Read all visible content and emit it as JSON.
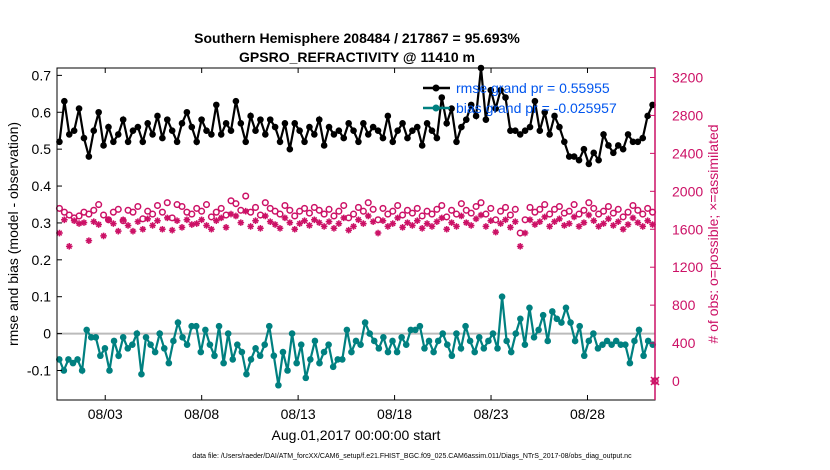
{
  "chart_data": {
    "type": "line",
    "title": "Southern Hemisphere 208484 / 217867 = 95.693%",
    "subtitle": "GPSRO_REFRACTIVITY @ 11410 m",
    "xlabel": "Aug.01,2017 00:00:00 start",
    "ylabel": "rmse and bias (model - observation)",
    "y2label": "# of obs: o=possible; ×=assimilated",
    "footnote": "data file: /Users/raeder/DAI/ATM_forcXX/CAM6_setup/f.e21.FHIST_BGC.f09_025.CAM6assim.011/Diags_NTrS_2017-08/obs_diag_output.nc",
    "xlim": [
      0.0,
      31.0
    ],
    "ylim": [
      -0.18,
      0.72
    ],
    "y2lim": [
      -200,
      3300
    ],
    "x_ticks": [
      2.5,
      7.5,
      12.5,
      17.5,
      22.5,
      27.5
    ],
    "x_tick_labels": [
      "08/03",
      "08/08",
      "08/13",
      "08/18",
      "08/23",
      "08/28"
    ],
    "y_ticks": [
      -0.1,
      0,
      0.1,
      0.2,
      0.3,
      0.4,
      0.5,
      0.6,
      0.7
    ],
    "y_tick_labels": [
      "-0.1",
      "0",
      "0.1",
      "0.2",
      "0.3",
      "0.4",
      "0.5",
      "0.6",
      "0.7"
    ],
    "y2_ticks": [
      0,
      400,
      800,
      1200,
      1600,
      2000,
      2400,
      2800,
      3200
    ],
    "y2_tick_labels": [
      "0",
      "400",
      "800",
      "1200",
      "1600",
      "2000",
      "2400",
      "2800",
      "3200"
    ],
    "legend_position": "top-right",
    "series": [
      {
        "name": "rmse grand pr = 0.55955",
        "axis": "left",
        "color": "#000000",
        "values": [
          0.52,
          0.63,
          0.54,
          0.55,
          0.61,
          0.53,
          0.48,
          0.55,
          0.6,
          0.51,
          0.56,
          0.52,
          0.54,
          0.58,
          0.52,
          0.55,
          0.56,
          0.52,
          0.57,
          0.54,
          0.59,
          0.53,
          0.58,
          0.55,
          0.52,
          0.57,
          0.6,
          0.56,
          0.52,
          0.58,
          0.55,
          0.54,
          0.62,
          0.54,
          0.57,
          0.55,
          0.63,
          0.57,
          0.52,
          0.59,
          0.55,
          0.58,
          0.54,
          0.58,
          0.56,
          0.52,
          0.57,
          0.5,
          0.57,
          0.55,
          0.52,
          0.56,
          0.54,
          0.58,
          0.51,
          0.56,
          0.54,
          0.55,
          0.53,
          0.57,
          0.55,
          0.52,
          0.57,
          0.54,
          0.56,
          0.55,
          0.53,
          0.59,
          0.52,
          0.55,
          0.57,
          0.53,
          0.55,
          0.56,
          0.51,
          0.57,
          0.55,
          0.53,
          0.64,
          0.57,
          0.61,
          0.52,
          0.56,
          0.58,
          0.62,
          0.59,
          0.72,
          0.58,
          0.66,
          0.61,
          0.66,
          0.64,
          0.55,
          0.55,
          0.54,
          0.55,
          0.56,
          0.63,
          0.55,
          0.6,
          0.54,
          0.59,
          0.56,
          0.52,
          0.48,
          0.48,
          0.47,
          0.5,
          0.46,
          0.49,
          0.47,
          0.54,
          0.51,
          0.49,
          0.51,
          0.5,
          0.54,
          0.52,
          0.52,
          0.53,
          0.59,
          0.62
        ]
      },
      {
        "name": "bias grand pr = -0.025957",
        "axis": "left",
        "color": "#008080",
        "values": [
          -0.07,
          -0.1,
          -0.07,
          -0.08,
          -0.07,
          -0.1,
          0.01,
          -0.01,
          -0.01,
          -0.06,
          -0.04,
          -0.1,
          -0.02,
          -0.06,
          -0.01,
          -0.04,
          -0.03,
          0.0,
          -0.11,
          -0.01,
          -0.03,
          -0.05,
          0.0,
          -0.04,
          -0.08,
          -0.02,
          0.03,
          -0.01,
          -0.03,
          0.02,
          0.02,
          -0.05,
          0.01,
          -0.03,
          -0.06,
          0.02,
          -0.08,
          0.0,
          -0.07,
          -0.03,
          -0.05,
          -0.11,
          -0.07,
          -0.04,
          -0.06,
          -0.03,
          0.02,
          -0.06,
          -0.14,
          -0.05,
          -0.1,
          0.0,
          -0.08,
          -0.03,
          -0.12,
          -0.07,
          -0.02,
          -0.08,
          -0.05,
          -0.03,
          -0.09,
          -0.07,
          -0.07,
          0.01,
          -0.05,
          -0.02,
          -0.03,
          0.03,
          0.0,
          -0.02,
          -0.04,
          -0.01,
          -0.05,
          -0.02,
          -0.05,
          -0.01,
          -0.03,
          0.01,
          0.01,
          0.02,
          -0.04,
          -0.02,
          -0.05,
          -0.02,
          0.0,
          -0.03,
          -0.06,
          0.0,
          -0.04,
          0.02,
          -0.02,
          -0.05,
          -0.01,
          -0.04,
          -0.02,
          0.0,
          -0.04,
          0.1,
          -0.02,
          -0.05,
          0.0,
          0.04,
          -0.03,
          0.07,
          -0.01,
          0.01,
          0.05,
          -0.02,
          0.06,
          0.04,
          0.03,
          0.07,
          0.03,
          -0.02,
          0.02,
          -0.06,
          -0.02,
          0.0,
          -0.04,
          -0.03,
          -0.02,
          -0.03,
          -0.02,
          -0.03,
          -0.03,
          -0.08,
          -0.02,
          0.01,
          -0.06,
          -0.02,
          -0.03
        ]
      },
      {
        "name": "possible",
        "axis": "right",
        "color": "#cc1166",
        "marker": "circle",
        "values": [
          1820,
          1780,
          1750,
          1720,
          1740,
          1780,
          1760,
          1800,
          1860,
          1750,
          1700,
          1780,
          1810,
          1690,
          1800,
          1780,
          1840,
          1710,
          1790,
          1760,
          1850,
          1780,
          1880,
          1720,
          1860,
          1840,
          1780,
          1760,
          1820,
          1790,
          1860,
          1730,
          1780,
          1820,
          1750,
          1900,
          1870,
          1800,
          1950,
          1780,
          1830,
          1750,
          1880,
          1820,
          1790,
          1760,
          1850,
          1800,
          1740,
          1790,
          1820,
          1770,
          1830,
          1800,
          1760,
          1810,
          1740,
          1790,
          1850,
          1720,
          1760,
          1830,
          1790,
          1880,
          1810,
          1700,
          1820,
          1760,
          1790,
          1850,
          1750,
          1800,
          1770,
          1820,
          1740,
          1790,
          1760,
          1810,
          1850,
          1730,
          1800,
          1760,
          1870,
          1800,
          1770,
          1840,
          1880,
          1760,
          1820,
          1700,
          1790,
          1830,
          1750,
          1810,
          1560,
          1700,
          1830,
          1780,
          1810,
          1860,
          1760,
          1810,
          1840,
          1770,
          1790,
          1860,
          1760,
          1800,
          1880,
          1820,
          1760,
          1790,
          1840,
          1770,
          1810,
          1730,
          1780,
          1850,
          1800,
          1760,
          1820,
          1780
        ]
      },
      {
        "name": "assimilated",
        "axis": "right",
        "color": "#cc1166",
        "marker": "asterisk",
        "values": [
          1560,
          1700,
          1420,
          1690,
          1660,
          1670,
          1480,
          1680,
          1650,
          1530,
          1700,
          1660,
          1580,
          1700,
          1640,
          1580,
          1680,
          1600,
          1710,
          1640,
          1690,
          1600,
          1720,
          1590,
          1690,
          1620,
          1700,
          1650,
          1660,
          1700,
          1640,
          1600,
          1690,
          1720,
          1620,
          1760,
          1740,
          1670,
          1790,
          1630,
          1690,
          1610,
          1740,
          1680,
          1650,
          1610,
          1720,
          1670,
          1600,
          1660,
          1690,
          1640,
          1700,
          1670,
          1630,
          1680,
          1610,
          1660,
          1720,
          1590,
          1630,
          1700,
          1660,
          1740,
          1680,
          1560,
          1690,
          1630,
          1660,
          1720,
          1620,
          1670,
          1640,
          1690,
          1610,
          1660,
          1630,
          1680,
          1720,
          1600,
          1670,
          1630,
          1740,
          1670,
          1640,
          1710,
          1750,
          1630,
          1690,
          1570,
          1660,
          1700,
          1620,
          1680,
          1420,
          1560,
          1700,
          1650,
          1680,
          1730,
          1630,
          1680,
          1710,
          1640,
          1660,
          1730,
          1630,
          1670,
          1750,
          1690,
          1630,
          1660,
          1710,
          1640,
          1680,
          1600,
          1650,
          1720,
          1670,
          1630,
          1690,
          1650
        ]
      }
    ]
  }
}
